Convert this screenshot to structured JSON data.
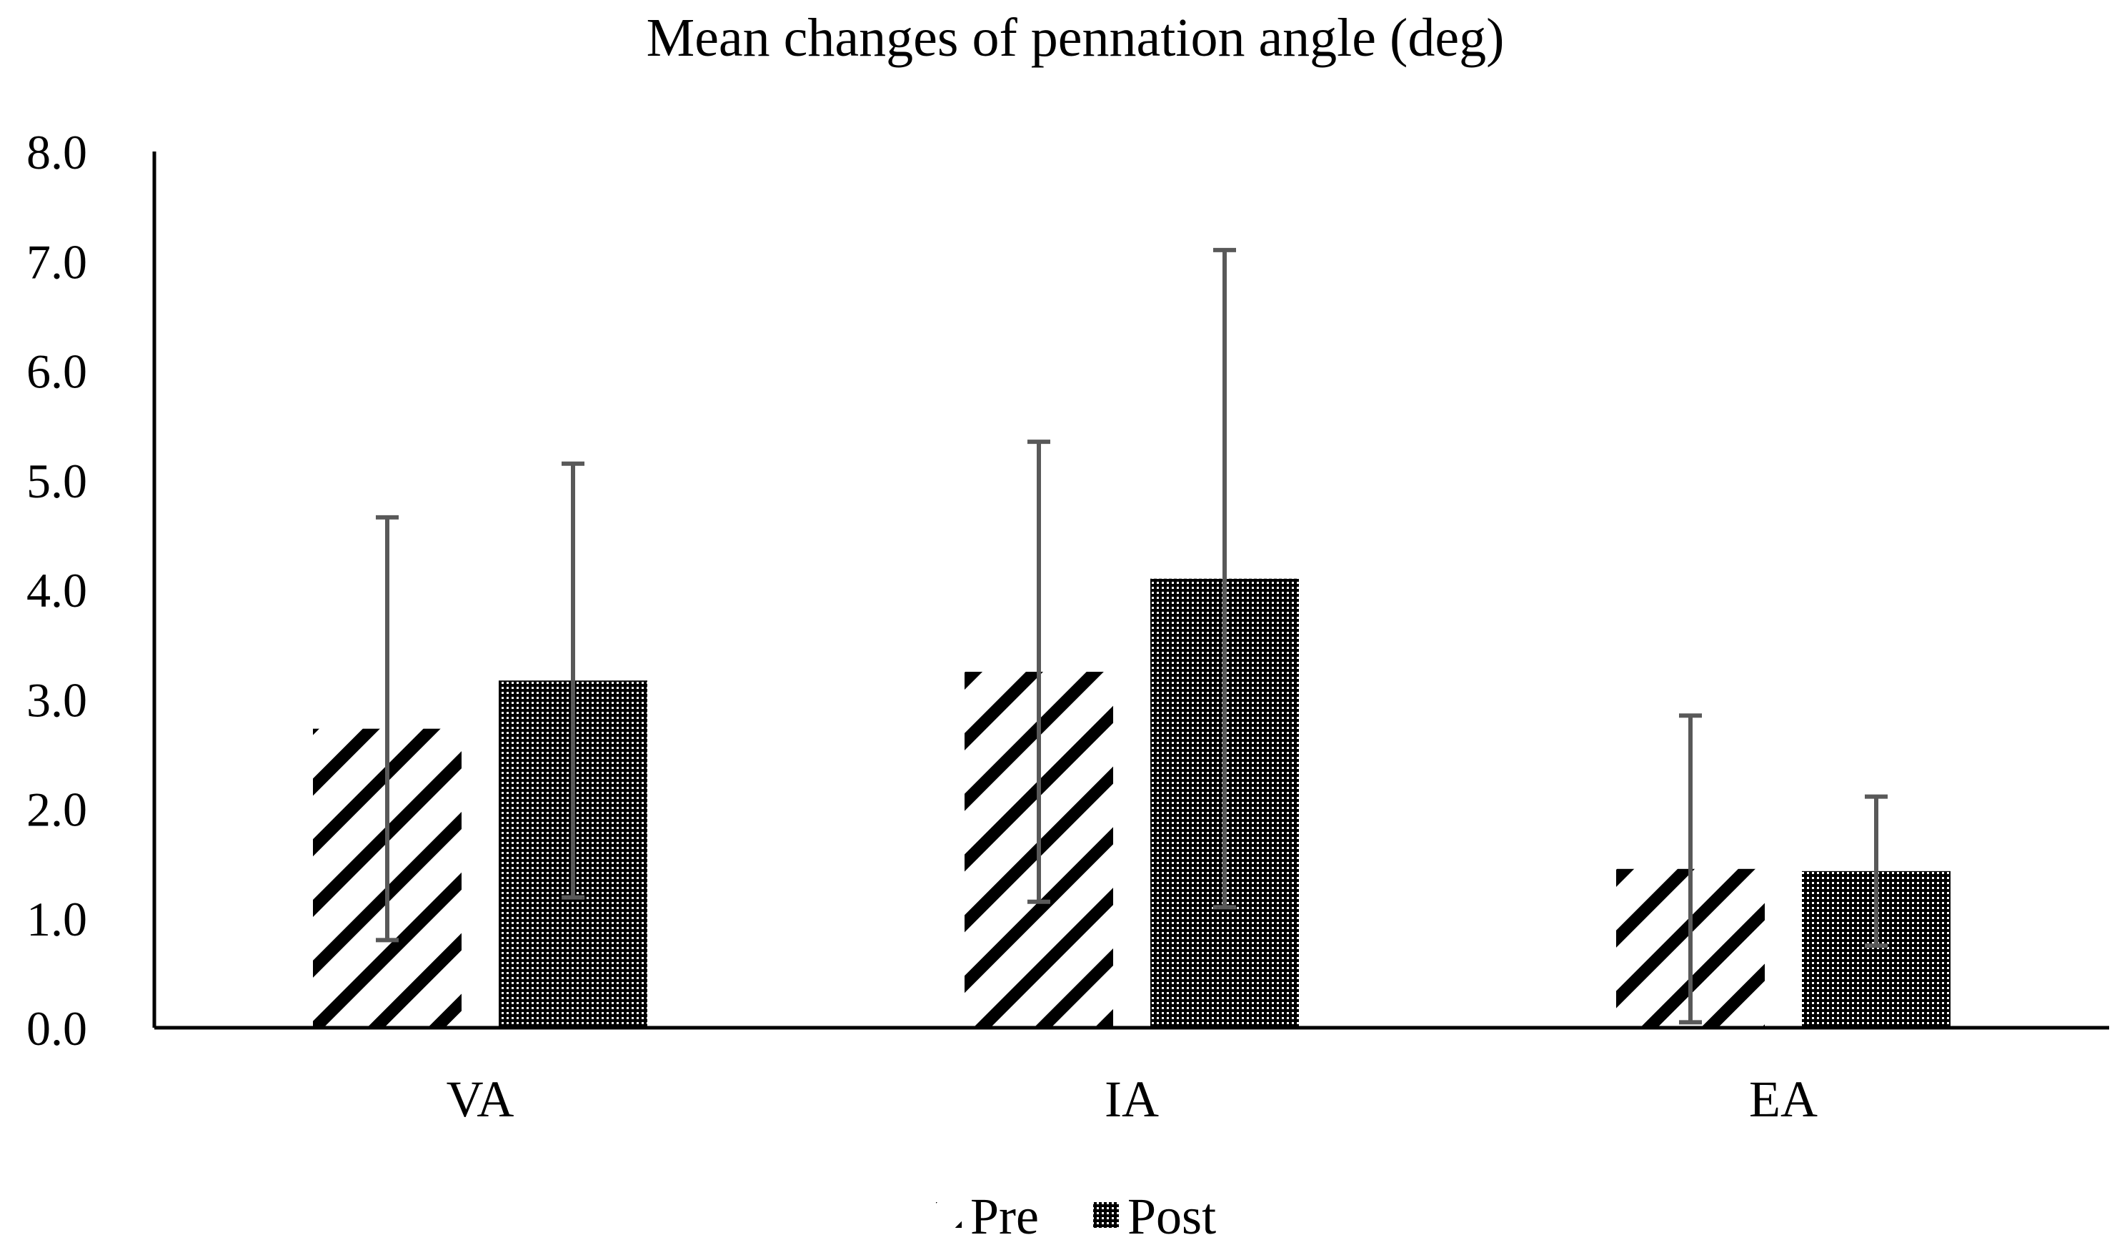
{
  "chart_data": {
    "type": "bar",
    "title": "Mean changes of pennation angle (deg)",
    "xlabel": "",
    "ylabel": "",
    "categories": [
      "VA",
      "IA",
      "EA"
    ],
    "ylim": [
      0,
      8
    ],
    "yticks": [
      "0.0",
      "1.0",
      "2.0",
      "3.0",
      "4.0",
      "5.0",
      "6.0",
      "7.0",
      "8.0"
    ],
    "ytick_values": [
      0,
      1,
      2,
      3,
      4,
      5,
      6,
      7,
      8
    ],
    "grid": false,
    "legend_position": "bottom-center",
    "series": [
      {
        "name": "Pre",
        "pattern": "diagonal-stripes",
        "values": [
          2.73,
          3.25,
          1.45
        ],
        "error": [
          1.93,
          2.1,
          1.4
        ]
      },
      {
        "name": "Post",
        "pattern": "dense-dots",
        "values": [
          3.17,
          4.1,
          1.43
        ],
        "error": [
          1.98,
          3.0,
          0.68
        ]
      }
    ],
    "colors": {
      "axis": "#000000",
      "error_bar": "#595959",
      "pattern_ink": "#000000",
      "background": "#ffffff"
    }
  }
}
